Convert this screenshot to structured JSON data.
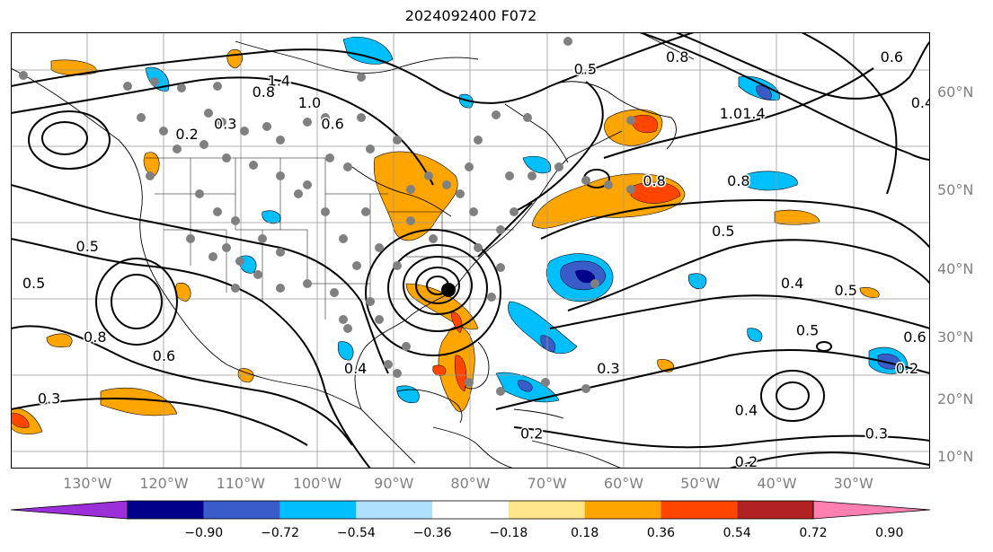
{
  "title": "2024092400 F072",
  "map": {
    "projection": "mercator",
    "lon_range": [
      -140,
      -20
    ],
    "lat_range": [
      8,
      65
    ],
    "lat_labels": [
      {
        "lat": 60,
        "text": "60°N"
      },
      {
        "lat": 50,
        "text": "50°N"
      },
      {
        "lat": 40,
        "text": "40°N"
      },
      {
        "lat": 30,
        "text": "30°N"
      },
      {
        "lat": 20,
        "text": "20°N"
      },
      {
        "lat": 10,
        "text": "10°N"
      }
    ],
    "lon_labels": [
      {
        "lon": -130,
        "text": "130°W"
      },
      {
        "lon": -120,
        "text": "120°W"
      },
      {
        "lon": -110,
        "text": "110°W"
      },
      {
        "lon": -100,
        "text": "100°W"
      },
      {
        "lon": -90,
        "text": "90°W"
      },
      {
        "lon": -80,
        "text": "80°W"
      },
      {
        "lon": -70,
        "text": "70°W"
      },
      {
        "lon": -60,
        "text": "60°W"
      },
      {
        "lon": -50,
        "text": "50°W"
      },
      {
        "lon": -40,
        "text": "40°W"
      },
      {
        "lon": -30,
        "text": "30°W"
      }
    ],
    "grid": true,
    "contour_labels": [
      {
        "text": "1.4",
        "lon": -105,
        "lat": 61
      },
      {
        "text": "0.8",
        "lon": -107,
        "lat": 60
      },
      {
        "text": "1.0",
        "lon": -101,
        "lat": 59
      },
      {
        "text": "0.6",
        "lon": -98,
        "lat": 57
      },
      {
        "text": "0.3",
        "lon": -112,
        "lat": 57
      },
      {
        "text": "0.2",
        "lon": -117,
        "lat": 56
      },
      {
        "text": "0.5",
        "lon": -130,
        "lat": 43
      },
      {
        "text": "0.5",
        "lon": -137,
        "lat": 38
      },
      {
        "text": "0.8",
        "lon": -129,
        "lat": 30
      },
      {
        "text": "0.6",
        "lon": -120,
        "lat": 27
      },
      {
        "text": "0.3",
        "lon": -135,
        "lat": 20
      },
      {
        "text": "0.4",
        "lon": -95,
        "lat": 25
      },
      {
        "text": "0.2",
        "lon": -72,
        "lat": 14
      },
      {
        "text": "0.3",
        "lon": -62,
        "lat": 25
      },
      {
        "text": "0.8",
        "lon": -56,
        "lat": 51
      },
      {
        "text": "0.5",
        "lon": -47,
        "lat": 45
      },
      {
        "text": "0.4",
        "lon": -38,
        "lat": 38
      },
      {
        "text": "0.5",
        "lon": -31,
        "lat": 37
      },
      {
        "text": "0.5",
        "lon": -36,
        "lat": 31
      },
      {
        "text": "0.6",
        "lon": -22,
        "lat": 30
      },
      {
        "text": "0.2",
        "lon": -23,
        "lat": 25
      },
      {
        "text": "0.3",
        "lon": -27,
        "lat": 14
      },
      {
        "text": "0.4",
        "lon": -44,
        "lat": 18
      },
      {
        "text": "0.2",
        "lon": -44,
        "lat": 9
      },
      {
        "text": "0.8",
        "lon": -45,
        "lat": 51
      },
      {
        "text": "1.4",
        "lon": -43,
        "lat": 58
      },
      {
        "text": "1.0",
        "lon": -46,
        "lat": 58
      },
      {
        "text": "0.8",
        "lon": -53,
        "lat": 63
      },
      {
        "text": "0.5",
        "lon": -65,
        "lat": 62
      },
      {
        "text": "0.6",
        "lon": -25,
        "lat": 63
      },
      {
        "text": "0.4",
        "lon": -21,
        "lat": 59
      }
    ]
  },
  "colorbar": {
    "ticks": [
      "−0.90",
      "−0.72",
      "−0.54",
      "−0.36",
      "−0.18",
      "0.18",
      "0.36",
      "0.54",
      "0.72",
      "0.90"
    ],
    "under_color": "#9b30d9",
    "over_color": "#ff80b0",
    "colors": [
      "#9b30d9",
      "#00008b",
      "#3a5cc8",
      "#00bfff",
      "#b0e0ff",
      "#ffffff",
      "#ffe68a",
      "#ffa500",
      "#ff4500",
      "#b22222",
      "#ff80b0"
    ]
  }
}
